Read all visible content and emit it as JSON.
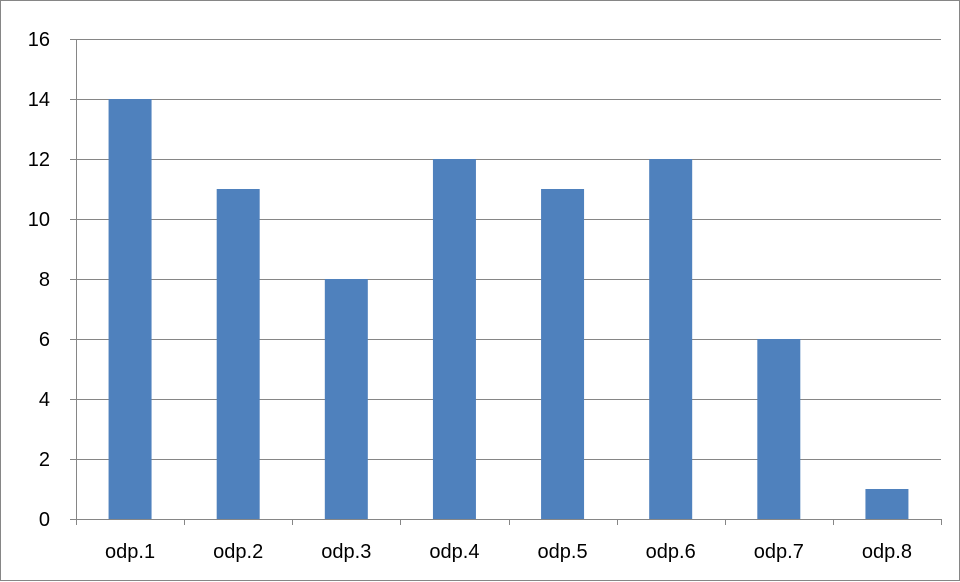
{
  "chart_data": {
    "type": "bar",
    "categories": [
      "odp.1",
      "odp.2",
      "odp.3",
      "odp.4",
      "odp.5",
      "odp.6",
      "odp.7",
      "odp.8"
    ],
    "values": [
      14,
      11,
      8,
      12,
      11,
      12,
      6,
      1
    ],
    "y_ticks": [
      "0",
      "2",
      "4",
      "6",
      "8",
      "10",
      "12",
      "14",
      "16"
    ],
    "ylim": [
      0,
      16
    ],
    "grid": true,
    "legend": "none",
    "colors": {
      "bar": "#4f81bd",
      "grid": "#868686",
      "axis": "#868686",
      "border": "#868686"
    }
  }
}
